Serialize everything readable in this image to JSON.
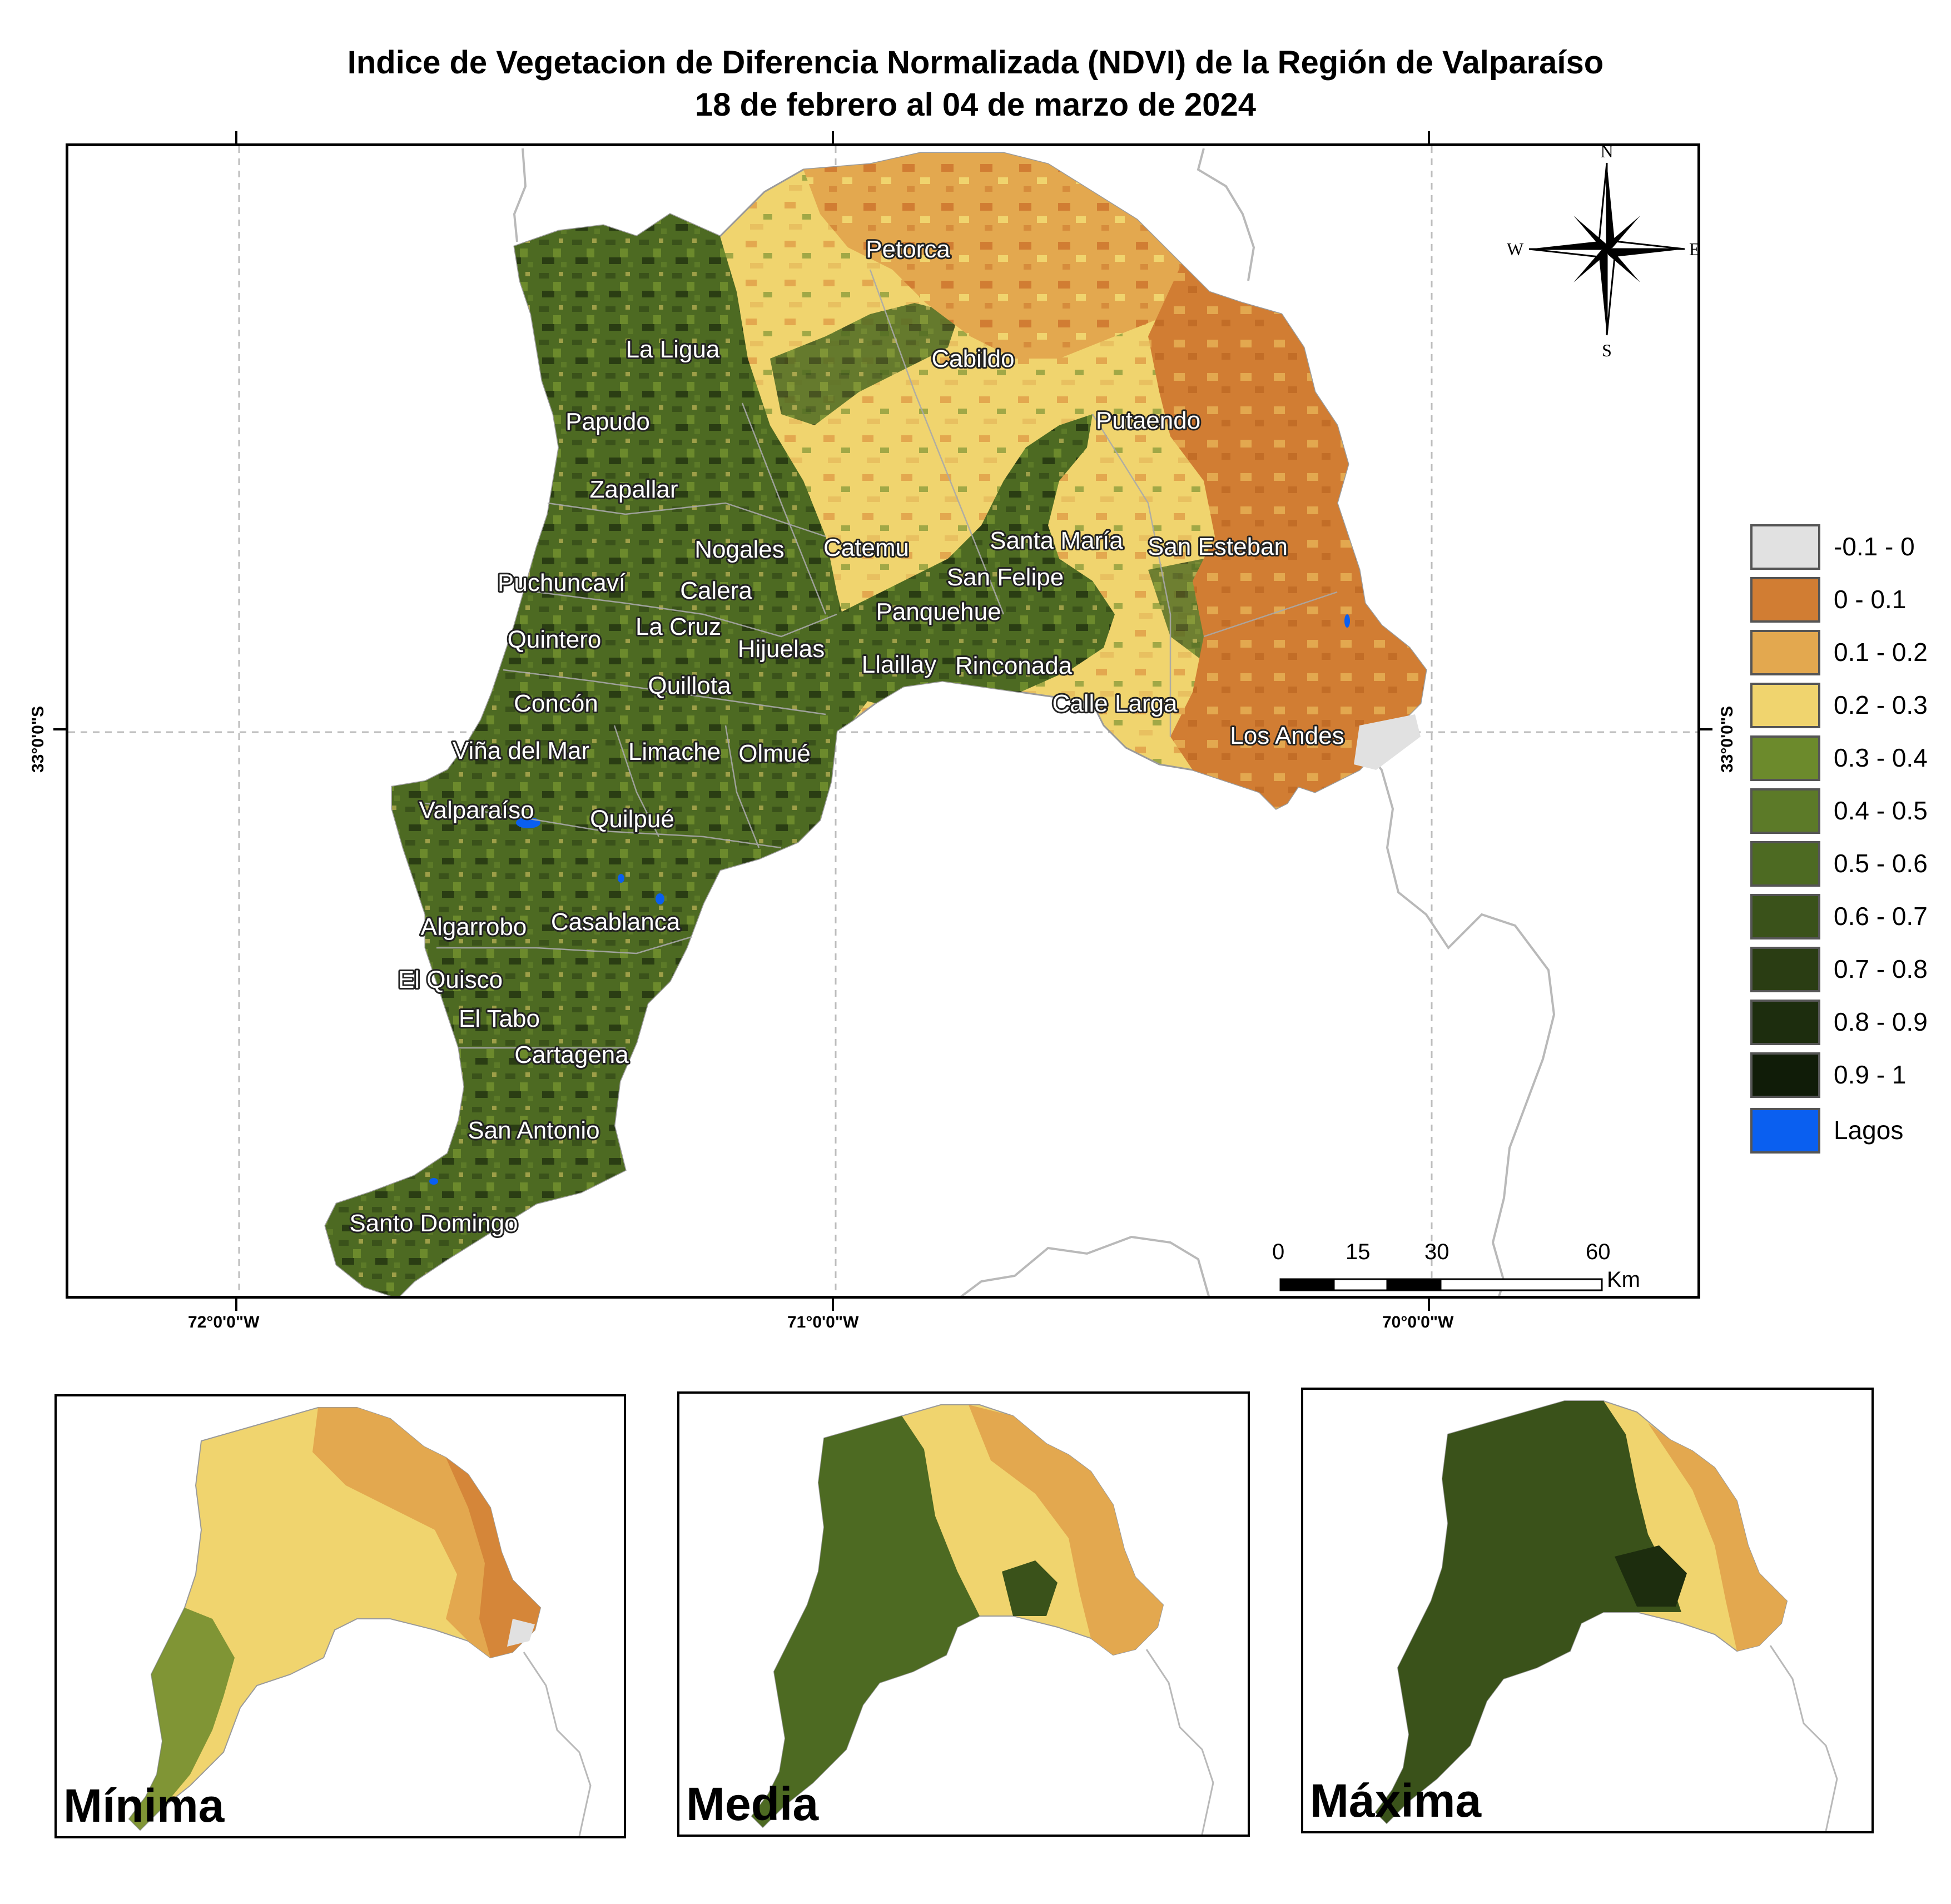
{
  "title": {
    "line1": "Indice de Vegetacion de Diferencia Normalizada (NDVI) de la Región de Valparaíso",
    "line2": "18 de febrero al 04 de marzo de 2024"
  },
  "axes": {
    "lon_labels": [
      "72°0'0\"W",
      "71°0'0\"W",
      "70°0'0\"W"
    ],
    "lat_label": "33°0'0\"S"
  },
  "compass": {
    "n": "N",
    "s": "S",
    "e": "E",
    "w": "W"
  },
  "places": [
    {
      "name": "Petorca"
    },
    {
      "name": "La Ligua"
    },
    {
      "name": "Cabildo"
    },
    {
      "name": "Papudo"
    },
    {
      "name": "Putaendo"
    },
    {
      "name": "Zapallar"
    },
    {
      "name": "Nogales"
    },
    {
      "name": "Catemu"
    },
    {
      "name": "Santa María"
    },
    {
      "name": "San Esteban"
    },
    {
      "name": "Puchuncaví"
    },
    {
      "name": "Calera"
    },
    {
      "name": "San Felipe"
    },
    {
      "name": "Panquehue"
    },
    {
      "name": "La Cruz"
    },
    {
      "name": "Quintero"
    },
    {
      "name": "Hijuelas"
    },
    {
      "name": "Llaillay"
    },
    {
      "name": "Rinconada"
    },
    {
      "name": "Quillota"
    },
    {
      "name": "Concón"
    },
    {
      "name": "Calle Larga"
    },
    {
      "name": "Los Andes"
    },
    {
      "name": "Viña del Mar"
    },
    {
      "name": "Limache"
    },
    {
      "name": "Olmué"
    },
    {
      "name": "Valparaíso"
    },
    {
      "name": "Quilpué"
    },
    {
      "name": "Algarrobo"
    },
    {
      "name": "Casablanca"
    },
    {
      "name": "El Quisco"
    },
    {
      "name": "El Tabo"
    },
    {
      "name": "Cartagena"
    },
    {
      "name": "San Antonio"
    },
    {
      "name": "Santo Domingo"
    }
  ],
  "legend": [
    {
      "label": "-0.1 - 0",
      "color": "#e1e1e1"
    },
    {
      "label": "0 - 0.1",
      "color": "#d17d33"
    },
    {
      "label": "0.1 - 0.2",
      "color": "#e3a84f"
    },
    {
      "label": "0.2 - 0.3",
      "color": "#f0d46e"
    },
    {
      "label": "0.3 - 0.4",
      "color": "#6c8a2c"
    },
    {
      "label": "0.4 - 0.5",
      "color": "#5c7a28"
    },
    {
      "label": "0.5 - 0.6",
      "color": "#4d6a22"
    },
    {
      "label": "0.6 - 0.7",
      "color": "#3a521a"
    },
    {
      "label": "0.7 - 0.8",
      "color": "#2a3d13"
    },
    {
      "label": "0.8 - 0.9",
      "color": "#1d2d0e"
    },
    {
      "label": "0.9 - 1",
      "color": "#101c08"
    },
    {
      "label": "Lagos",
      "color": "#0a5ff0"
    }
  ],
  "scale_bar": {
    "ticks": [
      "0",
      "15",
      "30",
      "60"
    ],
    "unit": "Km"
  },
  "insets": {
    "minima": "Mínima",
    "media": "Media",
    "maxima": "Máxima"
  }
}
